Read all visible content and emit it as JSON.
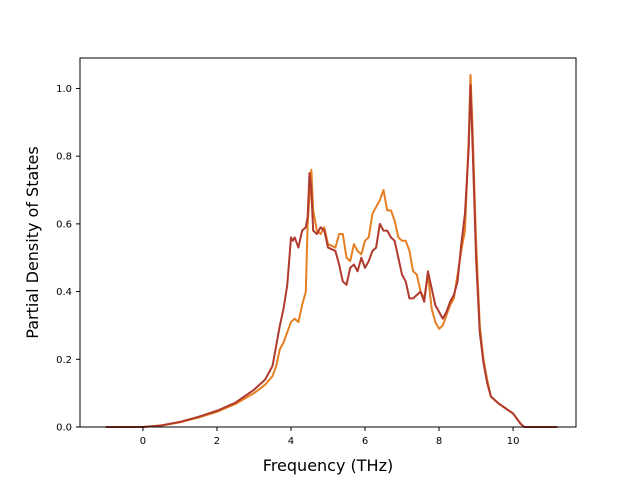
{
  "chart_data": {
    "type": "line",
    "title": "",
    "xlabel": "Frequency (THz)",
    "ylabel": "Partial Density of States",
    "xlim": [
      -1.7,
      11.7
    ],
    "ylim": [
      0.0,
      1.09
    ],
    "xticks": [
      0,
      2,
      4,
      6,
      8,
      10
    ],
    "xtick_labels": [
      "0",
      "2",
      "4",
      "6",
      "8",
      "10"
    ],
    "yticks": [
      0.0,
      0.2,
      0.4,
      0.6,
      0.8,
      1.0
    ],
    "ytick_labels": [
      "0.0",
      "0.2",
      "0.4",
      "0.6",
      "0.8",
      "1.0"
    ],
    "grid": false,
    "legend": "none",
    "series": [
      {
        "color": "#e67e22",
        "points": [
          [
            -1.0,
            0.0
          ],
          [
            0.0,
            0.0
          ],
          [
            0.5,
            0.004
          ],
          [
            1.0,
            0.014
          ],
          [
            1.5,
            0.028
          ],
          [
            2.0,
            0.045
          ],
          [
            2.5,
            0.068
          ],
          [
            3.0,
            0.1
          ],
          [
            3.3,
            0.125
          ],
          [
            3.5,
            0.15
          ],
          [
            3.6,
            0.18
          ],
          [
            3.7,
            0.23
          ],
          [
            3.8,
            0.25
          ],
          [
            3.9,
            0.28
          ],
          [
            4.0,
            0.31
          ],
          [
            4.1,
            0.32
          ],
          [
            4.2,
            0.31
          ],
          [
            4.3,
            0.36
          ],
          [
            4.4,
            0.4
          ],
          [
            4.45,
            0.6
          ],
          [
            4.5,
            0.68
          ],
          [
            4.55,
            0.76
          ],
          [
            4.6,
            0.64
          ],
          [
            4.7,
            0.58
          ],
          [
            4.8,
            0.57
          ],
          [
            4.9,
            0.59
          ],
          [
            5.0,
            0.54
          ],
          [
            5.2,
            0.53
          ],
          [
            5.3,
            0.57
          ],
          [
            5.4,
            0.57
          ],
          [
            5.5,
            0.5
          ],
          [
            5.6,
            0.49
          ],
          [
            5.7,
            0.54
          ],
          [
            5.8,
            0.52
          ],
          [
            5.9,
            0.51
          ],
          [
            6.0,
            0.55
          ],
          [
            6.1,
            0.56
          ],
          [
            6.2,
            0.63
          ],
          [
            6.3,
            0.65
          ],
          [
            6.4,
            0.67
          ],
          [
            6.5,
            0.7
          ],
          [
            6.6,
            0.64
          ],
          [
            6.7,
            0.64
          ],
          [
            6.8,
            0.61
          ],
          [
            6.9,
            0.56
          ],
          [
            7.0,
            0.55
          ],
          [
            7.1,
            0.55
          ],
          [
            7.2,
            0.52
          ],
          [
            7.3,
            0.46
          ],
          [
            7.4,
            0.45
          ],
          [
            7.5,
            0.4
          ],
          [
            7.6,
            0.38
          ],
          [
            7.7,
            0.45
          ],
          [
            7.8,
            0.35
          ],
          [
            7.9,
            0.31
          ],
          [
            8.0,
            0.29
          ],
          [
            8.1,
            0.3
          ],
          [
            8.2,
            0.33
          ],
          [
            8.3,
            0.36
          ],
          [
            8.4,
            0.38
          ],
          [
            8.5,
            0.45
          ],
          [
            8.6,
            0.52
          ],
          [
            8.7,
            0.58
          ],
          [
            8.8,
            0.85
          ],
          [
            8.85,
            1.04
          ],
          [
            8.9,
            0.9
          ],
          [
            9.0,
            0.55
          ],
          [
            9.1,
            0.3
          ],
          [
            9.2,
            0.2
          ],
          [
            9.3,
            0.14
          ],
          [
            9.4,
            0.09
          ],
          [
            9.6,
            0.07
          ],
          [
            9.8,
            0.055
          ],
          [
            10.0,
            0.04
          ],
          [
            10.2,
            0.01
          ],
          [
            10.3,
            0.0
          ],
          [
            11.2,
            0.0
          ]
        ]
      },
      {
        "color": "#b03a2e",
        "points": [
          [
            -1.0,
            0.0
          ],
          [
            0.0,
            0.0
          ],
          [
            0.5,
            0.005
          ],
          [
            1.0,
            0.015
          ],
          [
            1.5,
            0.03
          ],
          [
            2.0,
            0.048
          ],
          [
            2.5,
            0.072
          ],
          [
            3.0,
            0.11
          ],
          [
            3.3,
            0.14
          ],
          [
            3.5,
            0.18
          ],
          [
            3.6,
            0.24
          ],
          [
            3.7,
            0.3
          ],
          [
            3.8,
            0.35
          ],
          [
            3.9,
            0.42
          ],
          [
            4.0,
            0.56
          ],
          [
            4.05,
            0.55
          ],
          [
            4.1,
            0.56
          ],
          [
            4.2,
            0.53
          ],
          [
            4.3,
            0.58
          ],
          [
            4.4,
            0.59
          ],
          [
            4.45,
            0.62
          ],
          [
            4.5,
            0.75
          ],
          [
            4.55,
            0.7
          ],
          [
            4.6,
            0.58
          ],
          [
            4.7,
            0.57
          ],
          [
            4.8,
            0.59
          ],
          [
            4.9,
            0.58
          ],
          [
            5.0,
            0.53
          ],
          [
            5.2,
            0.52
          ],
          [
            5.3,
            0.48
          ],
          [
            5.4,
            0.43
          ],
          [
            5.5,
            0.42
          ],
          [
            5.6,
            0.47
          ],
          [
            5.7,
            0.48
          ],
          [
            5.8,
            0.46
          ],
          [
            5.9,
            0.5
          ],
          [
            6.0,
            0.47
          ],
          [
            6.1,
            0.49
          ],
          [
            6.2,
            0.52
          ],
          [
            6.3,
            0.53
          ],
          [
            6.4,
            0.6
          ],
          [
            6.5,
            0.58
          ],
          [
            6.6,
            0.58
          ],
          [
            6.7,
            0.56
          ],
          [
            6.8,
            0.55
          ],
          [
            6.9,
            0.5
          ],
          [
            7.0,
            0.45
          ],
          [
            7.1,
            0.43
          ],
          [
            7.2,
            0.38
          ],
          [
            7.3,
            0.38
          ],
          [
            7.4,
            0.39
          ],
          [
            7.5,
            0.4
          ],
          [
            7.6,
            0.37
          ],
          [
            7.7,
            0.46
          ],
          [
            7.8,
            0.41
          ],
          [
            7.9,
            0.36
          ],
          [
            8.0,
            0.34
          ],
          [
            8.1,
            0.32
          ],
          [
            8.2,
            0.34
          ],
          [
            8.3,
            0.37
          ],
          [
            8.4,
            0.39
          ],
          [
            8.5,
            0.43
          ],
          [
            8.6,
            0.54
          ],
          [
            8.7,
            0.63
          ],
          [
            8.8,
            0.82
          ],
          [
            8.85,
            1.01
          ],
          [
            8.9,
            0.85
          ],
          [
            9.0,
            0.5
          ],
          [
            9.1,
            0.28
          ],
          [
            9.2,
            0.19
          ],
          [
            9.3,
            0.13
          ],
          [
            9.4,
            0.09
          ],
          [
            9.6,
            0.07
          ],
          [
            9.8,
            0.055
          ],
          [
            10.0,
            0.04
          ],
          [
            10.2,
            0.01
          ],
          [
            10.3,
            0.0
          ],
          [
            11.2,
            0.0
          ]
        ]
      }
    ]
  }
}
